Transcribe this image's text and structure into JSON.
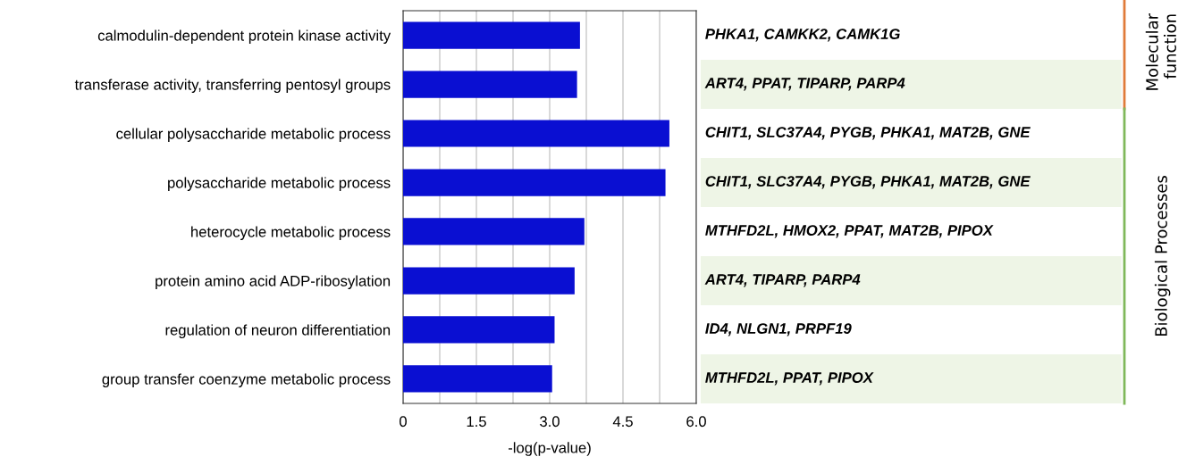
{
  "chart_data": {
    "type": "bar",
    "orientation": "horizontal",
    "xlabel": "-log(p-value)",
    "categories": [
      "calmodulin-dependent protein kinase activity",
      "transferase activity, transferring pentosyl groups",
      "cellular polysaccharide metabolic process",
      "polysaccharide metabolic process",
      "heterocycle metabolic process",
      "protein amino acid ADP-ribosylation",
      "regulation of neuron differentiation",
      "group transfer coenzyme metabolic process"
    ],
    "values": [
      3.62,
      3.56,
      5.45,
      5.37,
      3.71,
      3.51,
      3.1,
      3.05
    ],
    "color": "#0a0fd2",
    "xlim": [
      0,
      6.0
    ],
    "xticks": [
      0,
      1.5,
      {
        "value": 0.75,
        "label": null
      },
      {
        "value": 2.25,
        "label": null
      },
      {
        "value": 3.0,
        "label": "3.0"
      },
      {
        "value": 3.75,
        "label": null
      },
      4.5,
      {
        "value": 5.25,
        "label": null
      },
      {
        "value": 6.0,
        "label": "6.0"
      }
    ],
    "grid": "x",
    "annotations": [
      "PHKA1, CAMKK2, CAMK1G",
      "ART4, PPAT, TIPARP, PARP4",
      "CHIT1, SLC37A4, PYGB, PHKA1, MAT2B, GNE",
      "CHIT1, SLC37A4, PYGB, PHKA1, MAT2B, GNE",
      "MTHFD2L, HMOX2, PPAT, MAT2B, PIPOX",
      "ART4, TIPARP, PARP4",
      "ID4, NLGN1, PRPF19",
      "MTHFD2L, PPAT, PIPOX",
      "Molecular\nfunction",
      "Biological Processes"
    ]
  }
}
